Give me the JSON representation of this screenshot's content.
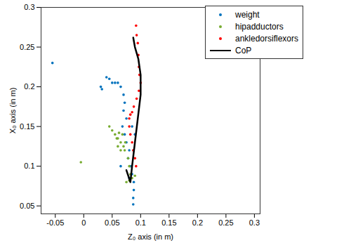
{
  "chart_data": {
    "type": "scatter",
    "xlabel": "Z₀ axis (in m)",
    "ylabel": "X₀ axis (in m)",
    "xlim": [
      -0.075,
      0.31
    ],
    "ylim": [
      0.04,
      0.3
    ],
    "xticks": [
      -0.05,
      0,
      0.05,
      0.1,
      0.15,
      0.2,
      0.25,
      0.3
    ],
    "yticks": [
      0.05,
      0.1,
      0.15,
      0.2,
      0.25,
      0.3
    ],
    "grid": false,
    "legend": "upper right",
    "series": [
      {
        "name": "weight",
        "type": "scatter",
        "marker": "dot",
        "color": "#0072bd",
        "x": [
          -0.055,
          0.03,
          0.032,
          0.04,
          0.045,
          0.05,
          0.055,
          0.06,
          0.065,
          0.07,
          0.072,
          0.07,
          0.075,
          0.068,
          0.072,
          0.075,
          0.08,
          0.078,
          0.082,
          0.085,
          0.088,
          0.088,
          0.087,
          0.087,
          0.065,
          0.08,
          0.085,
          0.09
        ],
        "y": [
          0.23,
          0.2,
          0.197,
          0.212,
          0.21,
          0.205,
          0.205,
          0.205,
          0.2,
          0.19,
          0.18,
          0.17,
          0.16,
          0.15,
          0.14,
          0.13,
          0.12,
          0.11,
          0.1,
          0.09,
          0.08,
          0.07,
          0.06,
          0.052,
          0.1,
          0.085,
          0.15,
          0.14
        ]
      },
      {
        "name": "hipadductors",
        "type": "scatter",
        "marker": "dot",
        "color": "#77ac30",
        "x": [
          -0.005,
          0.045,
          0.05,
          0.055,
          0.06,
          0.065,
          0.07,
          0.072,
          0.065,
          0.06,
          0.058,
          0.062,
          0.068,
          0.073,
          0.078,
          0.08,
          0.082,
          0.085,
          0.08,
          0.075,
          0.09
        ],
        "y": [
          0.105,
          0.15,
          0.145,
          0.14,
          0.135,
          0.13,
          0.125,
          0.12,
          0.12,
          0.125,
          0.135,
          0.142,
          0.14,
          0.13,
          0.11,
          0.1,
          0.09,
          0.085,
          0.082,
          0.08,
          0.088
        ]
      },
      {
        "name": "ankledorsiflexors",
        "type": "scatter",
        "marker": "dot",
        "color": "#ff0000",
        "x": [
          0.092,
          0.093,
          0.095,
          0.096,
          0.097,
          0.098,
          0.1,
          0.097,
          0.093,
          0.088,
          0.085,
          0.082,
          0.08,
          0.08,
          0.082,
          0.085,
          0.087,
          0.09,
          0.092
        ],
        "y": [
          0.277,
          0.265,
          0.255,
          0.24,
          0.225,
          0.215,
          0.205,
          0.195,
          0.185,
          0.175,
          0.168,
          0.165,
          0.16,
          0.15,
          0.14,
          0.13,
          0.12,
          0.11,
          0.1
        ]
      },
      {
        "name": "CoP",
        "type": "line",
        "line_style": "solid",
        "color": "#000000",
        "x": [
          0.075,
          0.082,
          0.085,
          0.09,
          0.095,
          0.1,
          0.1,
          0.096,
          0.09,
          0.087
        ],
        "y": [
          0.095,
          0.08,
          0.1,
          0.13,
          0.16,
          0.19,
          0.215,
          0.235,
          0.25,
          0.262
        ]
      }
    ]
  }
}
